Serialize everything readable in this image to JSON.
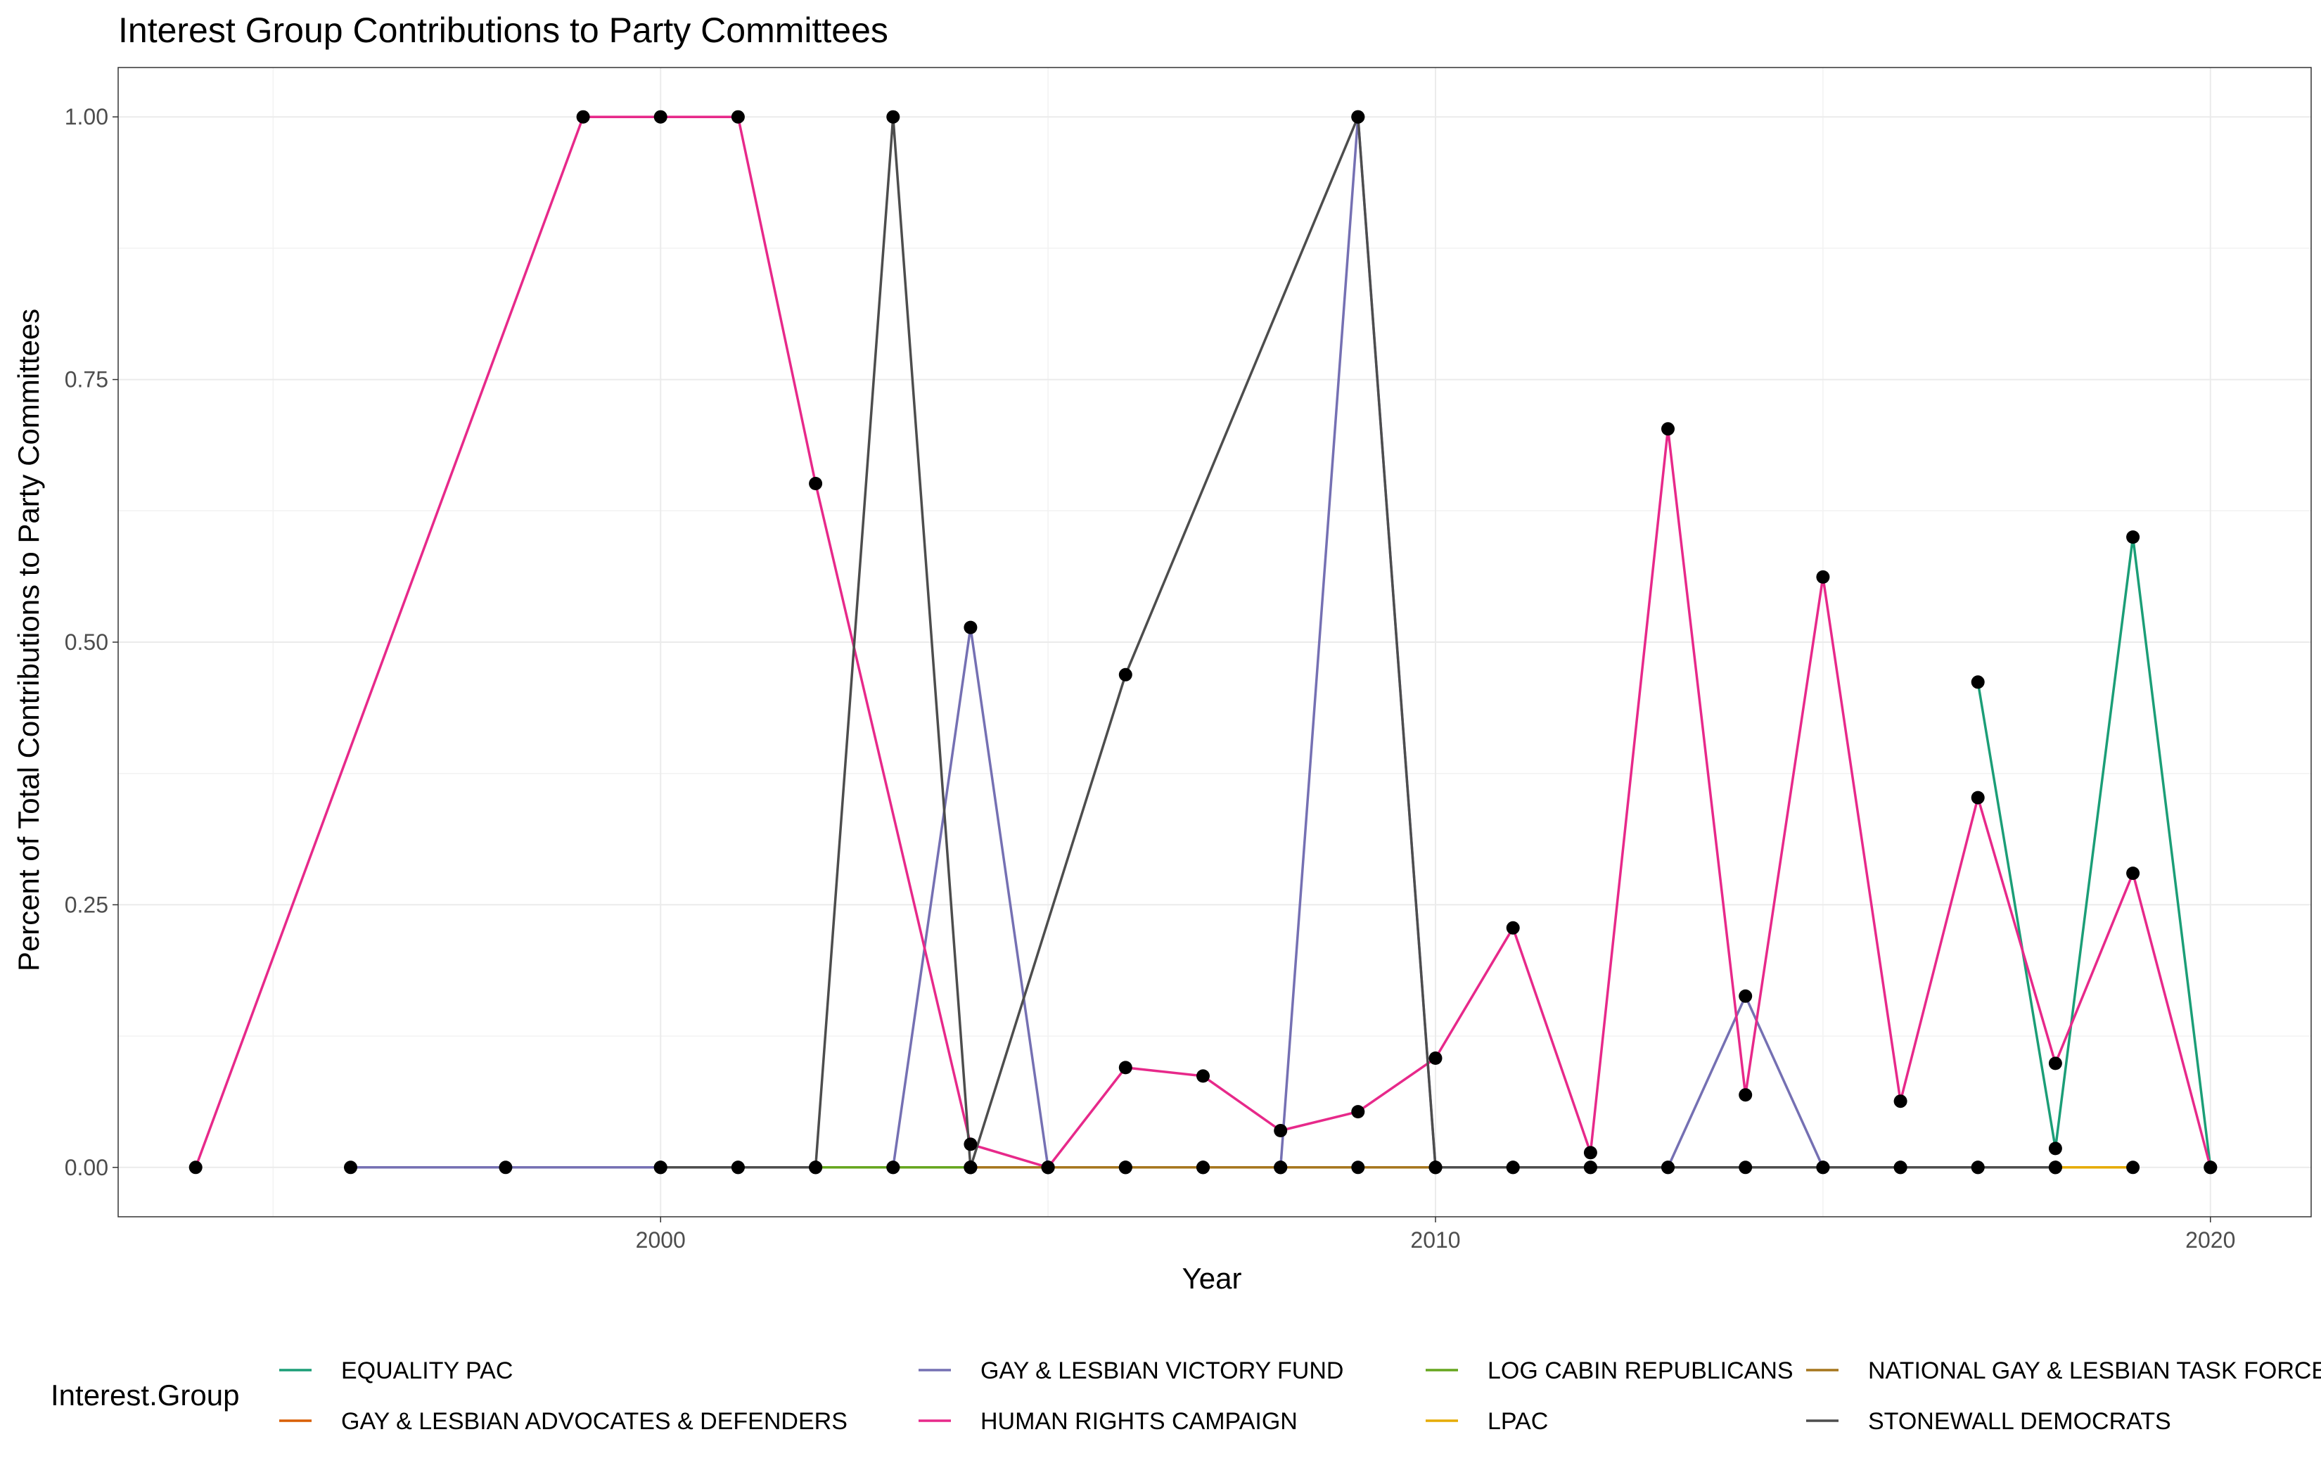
{
  "chart_data": {
    "type": "line",
    "title": "Interest Group Contributions to Party Committees",
    "xlabel": "Year",
    "ylabel": "Percent of Total Contributions to Party Committees",
    "xlim": [
      1993,
      2021.3
    ],
    "ylim": [
      -0.047,
      1.047
    ],
    "x_ticks": [
      2000,
      2010,
      2020
    ],
    "x_tick_labels": [
      "2000",
      "2010",
      "2020"
    ],
    "y_ticks": [
      0,
      0.25,
      0.5,
      0.75,
      1
    ],
    "y_tick_labels": [
      "0.00",
      "0.25",
      "0.50",
      "0.75",
      "1.00"
    ],
    "grid": true,
    "legend_position": "bottom",
    "legend_title": "Interest.Group",
    "series": [
      {
        "name": "EQUALITY PAC",
        "color": "#1B9E77",
        "points": [
          [
            2017,
            0.462
          ],
          [
            2018,
            0.018
          ],
          [
            2019,
            0.6
          ],
          [
            2020,
            0
          ]
        ]
      },
      {
        "name": "GAY & LESBIAN ADVOCATES & DEFENDERS",
        "color": "#D95F02",
        "points": [
          [
            2004,
            0
          ],
          [
            2005,
            0
          ],
          [
            2006,
            0
          ],
          [
            2007,
            0
          ],
          [
            2008,
            0
          ]
        ]
      },
      {
        "name": "GAY & LESBIAN VICTORY FUND",
        "color": "#7570B3",
        "points": [
          [
            1996,
            0
          ],
          [
            1998,
            0
          ],
          [
            2000,
            0
          ],
          [
            2001,
            0
          ],
          [
            2002,
            0
          ],
          [
            2003,
            0
          ],
          [
            2004,
            0.514
          ],
          [
            2005,
            0
          ],
          [
            2006,
            0
          ],
          [
            2007,
            0
          ],
          [
            2008,
            0
          ],
          [
            2009,
            1.0
          ],
          [
            2010,
            0
          ],
          [
            2011,
            0
          ],
          [
            2012,
            0
          ],
          [
            2013,
            0
          ],
          [
            2014,
            0.163
          ],
          [
            2015,
            0
          ],
          [
            2016,
            0
          ],
          [
            2017,
            0
          ],
          [
            2018,
            0
          ]
        ]
      },
      {
        "name": "HUMAN RIGHTS CAMPAIGN",
        "color": "#E7298A",
        "points": [
          [
            1994,
            0
          ],
          [
            1999,
            1.0
          ],
          [
            2000,
            1.0
          ],
          [
            2001,
            1.0
          ],
          [
            2002,
            0.651
          ],
          [
            2004,
            0.022
          ],
          [
            2005,
            0
          ],
          [
            2006,
            0.095
          ],
          [
            2007,
            0.087
          ],
          [
            2008,
            0.035
          ],
          [
            2009,
            0.053
          ],
          [
            2010,
            0.104
          ],
          [
            2011,
            0.228
          ],
          [
            2012,
            0.014
          ],
          [
            2013,
            0.703
          ],
          [
            2014,
            0.069
          ],
          [
            2015,
            0.562
          ],
          [
            2016,
            0.063
          ],
          [
            2017,
            0.352
          ],
          [
            2018,
            0.099
          ],
          [
            2019,
            0.28
          ],
          [
            2020,
            0
          ]
        ]
      },
      {
        "name": "LOG CABIN REPUBLICANS",
        "color": "#66A61E",
        "points": [
          [
            2002,
            0
          ],
          [
            2003,
            0
          ],
          [
            2004,
            0
          ]
        ]
      },
      {
        "name": "LPAC",
        "color": "#E6AB02",
        "points": [
          [
            2018,
            0
          ],
          [
            2019,
            0
          ]
        ]
      },
      {
        "name": "NATIONAL GAY & LESBIAN TASK FORCE",
        "color": "#A6761D",
        "points": [
          [
            2004,
            0
          ],
          [
            2005,
            0
          ],
          [
            2006,
            0
          ],
          [
            2007,
            0
          ],
          [
            2008,
            0
          ],
          [
            2009,
            0
          ],
          [
            2010,
            0
          ]
        ]
      },
      {
        "name": "STONEWALL DEMOCRATS",
        "color": "#4D4D4D",
        "points": [
          [
            2000,
            0
          ],
          [
            2001,
            0
          ],
          [
            2002,
            0
          ],
          [
            2003,
            1.0
          ],
          [
            2004,
            0
          ],
          [
            2006,
            0.469
          ],
          [
            2009,
            1.0
          ],
          [
            2010,
            0
          ],
          [
            2011,
            0
          ],
          [
            2012,
            0
          ],
          [
            2013,
            0
          ],
          [
            2014,
            0
          ],
          [
            2015,
            0
          ],
          [
            2016,
            0
          ],
          [
            2017,
            0
          ],
          [
            2018,
            0
          ]
        ]
      }
    ],
    "legend_order": [
      "EQUALITY PAC",
      "GAY & LESBIAN ADVOCATES & DEFENDERS",
      "GAY & LESBIAN VICTORY FUND",
      "HUMAN RIGHTS CAMPAIGN",
      "LOG CABIN REPUBLICANS",
      "LPAC",
      "NATIONAL GAY & LESBIAN TASK FORCE",
      "STONEWALL DEMOCRATS"
    ]
  }
}
